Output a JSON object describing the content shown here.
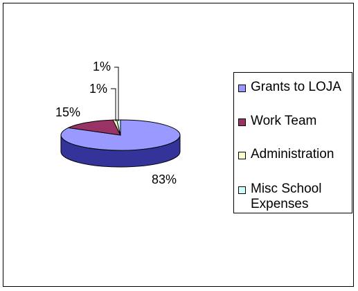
{
  "chart_data": {
    "type": "pie",
    "title": "",
    "categories": [
      "Grants to LOJA",
      "Work Team",
      "Administration",
      "Misc School Expenses"
    ],
    "values": [
      83,
      15,
      1,
      1
    ],
    "data_labels": [
      "83%",
      "15%",
      "1%",
      "1%"
    ],
    "colors": [
      "#9999ff",
      "#993366",
      "#ffffcc",
      "#ccffff"
    ],
    "side_colors": [
      "#333399",
      "#4d1a33",
      "#cccc99",
      "#99cccc"
    ],
    "legend_position": "right",
    "style": "3d"
  }
}
